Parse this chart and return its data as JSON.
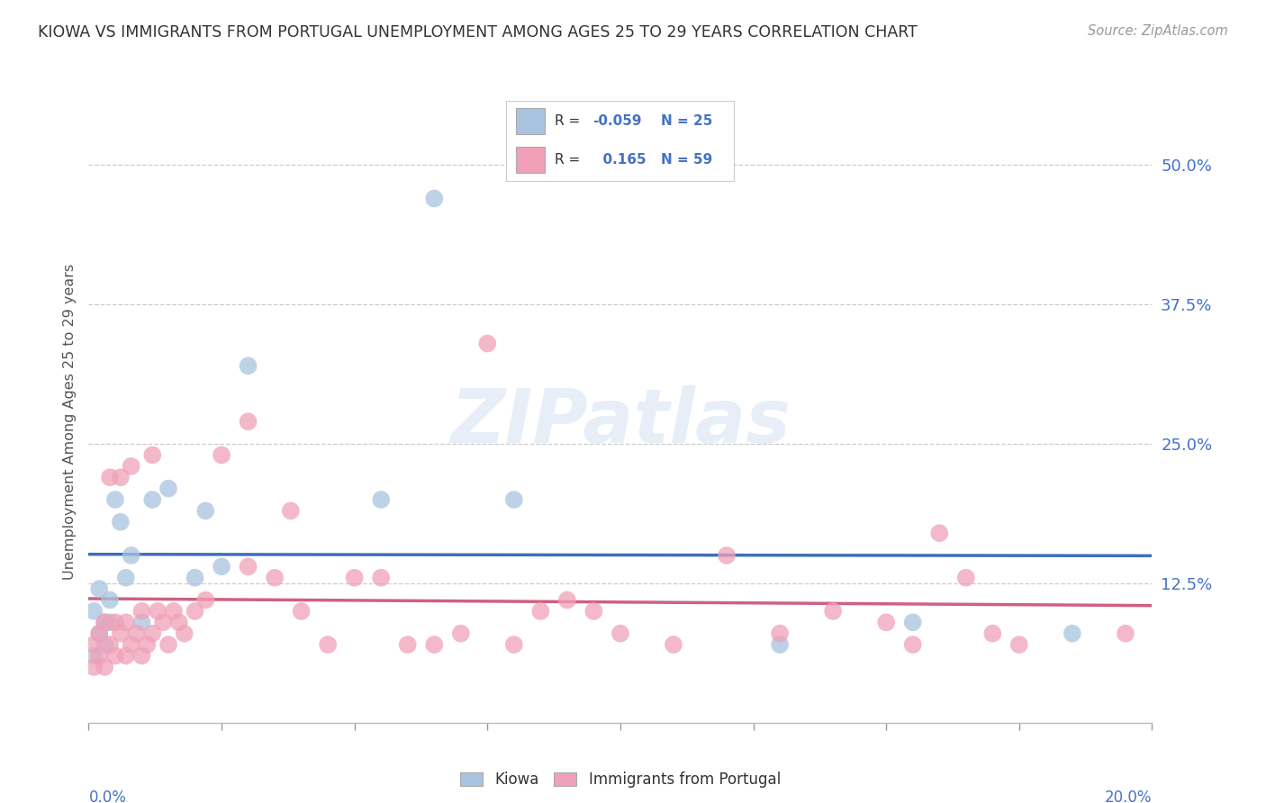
{
  "title": "KIOWA VS IMMIGRANTS FROM PORTUGAL UNEMPLOYMENT AMONG AGES 25 TO 29 YEARS CORRELATION CHART",
  "source": "Source: ZipAtlas.com",
  "ylabel": "Unemployment Among Ages 25 to 29 years",
  "legend_labels": [
    "Kiowa",
    "Immigrants from Portugal"
  ],
  "r_values": [
    -0.059,
    0.165
  ],
  "n_values": [
    25,
    59
  ],
  "blue_color": "#a8c4e0",
  "pink_color": "#f0a0b8",
  "blue_line_color": "#3c6fba",
  "pink_line_color": "#d06080",
  "title_color": "#333333",
  "source_color": "#999999",
  "label_color": "#4472c4",
  "ytick_labels": [
    "12.5%",
    "25.0%",
    "37.5%",
    "50.0%"
  ],
  "ytick_values": [
    0.125,
    0.25,
    0.375,
    0.5
  ],
  "background_color": "#ffffff",
  "kiowa_x": [
    0.001,
    0.001,
    0.002,
    0.002,
    0.003,
    0.003,
    0.004,
    0.004,
    0.005,
    0.006,
    0.007,
    0.008,
    0.01,
    0.012,
    0.015,
    0.02,
    0.022,
    0.025,
    0.03,
    0.055,
    0.065,
    0.08,
    0.13,
    0.155,
    0.185
  ],
  "kiowa_y": [
    0.06,
    0.1,
    0.08,
    0.12,
    0.07,
    0.09,
    0.09,
    0.11,
    0.2,
    0.18,
    0.13,
    0.15,
    0.09,
    0.2,
    0.21,
    0.13,
    0.19,
    0.14,
    0.32,
    0.2,
    0.47,
    0.2,
    0.07,
    0.09,
    0.08
  ],
  "portugal_x": [
    0.001,
    0.001,
    0.002,
    0.002,
    0.003,
    0.003,
    0.004,
    0.004,
    0.005,
    0.005,
    0.006,
    0.006,
    0.007,
    0.007,
    0.008,
    0.008,
    0.009,
    0.01,
    0.01,
    0.011,
    0.012,
    0.012,
    0.013,
    0.014,
    0.015,
    0.016,
    0.017,
    0.018,
    0.02,
    0.022,
    0.025,
    0.03,
    0.03,
    0.035,
    0.038,
    0.04,
    0.045,
    0.05,
    0.055,
    0.06,
    0.065,
    0.07,
    0.075,
    0.08,
    0.085,
    0.09,
    0.095,
    0.1,
    0.11,
    0.12,
    0.13,
    0.14,
    0.15,
    0.155,
    0.16,
    0.165,
    0.17,
    0.175,
    0.195
  ],
  "portugal_y": [
    0.05,
    0.07,
    0.06,
    0.08,
    0.05,
    0.09,
    0.07,
    0.22,
    0.06,
    0.09,
    0.22,
    0.08,
    0.06,
    0.09,
    0.07,
    0.23,
    0.08,
    0.06,
    0.1,
    0.07,
    0.24,
    0.08,
    0.1,
    0.09,
    0.07,
    0.1,
    0.09,
    0.08,
    0.1,
    0.11,
    0.24,
    0.14,
    0.27,
    0.13,
    0.19,
    0.1,
    0.07,
    0.13,
    0.13,
    0.07,
    0.07,
    0.08,
    0.34,
    0.07,
    0.1,
    0.11,
    0.1,
    0.08,
    0.07,
    0.15,
    0.08,
    0.1,
    0.09,
    0.07,
    0.17,
    0.13,
    0.08,
    0.07,
    0.08
  ]
}
